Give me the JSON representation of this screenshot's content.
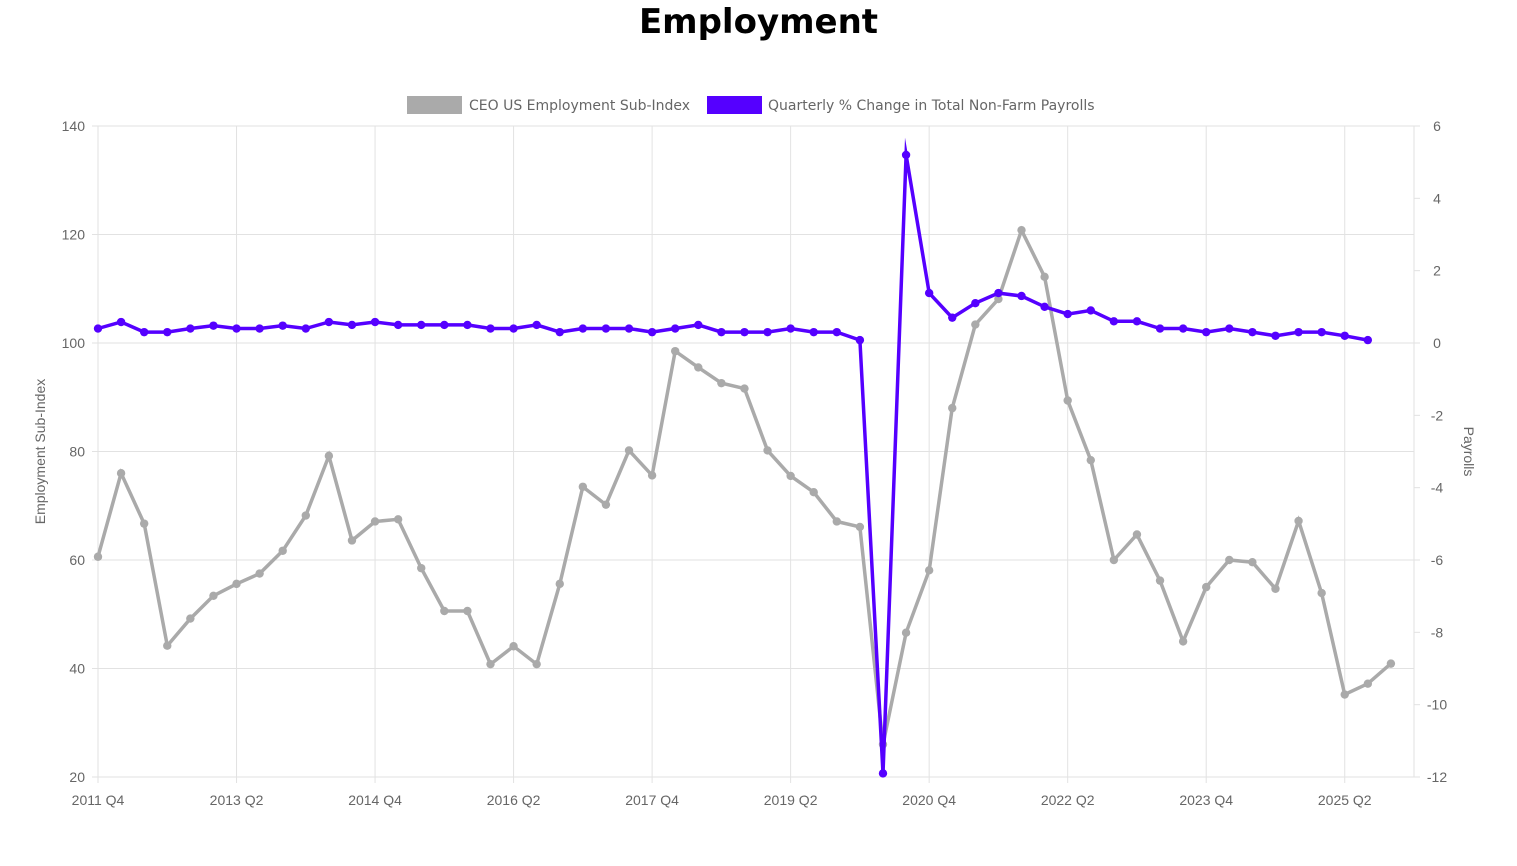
{
  "title": "Employment",
  "chart_data": {
    "type": "line",
    "title": "Employment",
    "categories": [
      "2011 Q4",
      "2012 Q1",
      "2012 Q2",
      "2012 Q3",
      "2012 Q4",
      "2013 Q1",
      "2013 Q2",
      "2013 Q3",
      "2013 Q4",
      "2014 Q1",
      "2014 Q2",
      "2014 Q3",
      "2014 Q4",
      "2015 Q1",
      "2015 Q2",
      "2015 Q3",
      "2015 Q4",
      "2016 Q1",
      "2016 Q2",
      "2016 Q3",
      "2016 Q4",
      "2017 Q1",
      "2017 Q2",
      "2017 Q3",
      "2017 Q4",
      "2018 Q1",
      "2018 Q2",
      "2018 Q3",
      "2018 Q4",
      "2019 Q1",
      "2019 Q2",
      "2019 Q3",
      "2019 Q4",
      "2020 Q1",
      "2020 Q2",
      "2020 Q3",
      "2020 Q4",
      "2021 Q1",
      "2021 Q2",
      "2021 Q3",
      "2021 Q4",
      "2022 Q1",
      "2022 Q2",
      "2022 Q3",
      "2022 Q4",
      "2023 Q1",
      "2023 Q2",
      "2023 Q3",
      "2023 Q4",
      "2024 Q1",
      "2024 Q2",
      "2024 Q3",
      "2024 Q4",
      "2025 Q1",
      "2025 Q2",
      "2025 Q3",
      "2025 Q4"
    ],
    "x_tick_labels": [
      "2011 Q4",
      "2013 Q2",
      "2014 Q4",
      "2016 Q2",
      "2017 Q4",
      "2019 Q2",
      "2020 Q4",
      "2022 Q2",
      "2023 Q4",
      "2025 Q2"
    ],
    "series": [
      {
        "name": "CEO US Employment Sub-Index",
        "axis": "left",
        "color": "#aaaaaa",
        "values": [
          60.6,
          76,
          66.7,
          44.2,
          49.2,
          53.4,
          55.6,
          57.5,
          61.7,
          68.2,
          79.2,
          63.6,
          67.1,
          67.5,
          58.5,
          50.6,
          50.6,
          40.8,
          44.1,
          40.8,
          55.6,
          73.5,
          70.2,
          80.2,
          75.6,
          98.5,
          95.5,
          92.6,
          91.6,
          80.2,
          75.5,
          72.5,
          67.1,
          66.1,
          26,
          46.6,
          58.1,
          88,
          103.4,
          108.1,
          120.8,
          112.2,
          89.4,
          78.4,
          60,
          64.7,
          56.2,
          45,
          55,
          60,
          59.6,
          54.7,
          67.2,
          53.9,
          35.2,
          37.2,
          40.9
        ]
      },
      {
        "name": "Quarterly % Change in Total Non-Farm Payrolls",
        "axis": "right",
        "color": "#5500ff",
        "values": [
          0.4,
          0.58,
          0.3,
          0.3,
          0.4,
          0.48,
          0.4,
          0.4,
          0.48,
          0.4,
          0.58,
          0.5,
          0.58,
          0.5,
          0.5,
          0.5,
          0.5,
          0.4,
          0.4,
          0.5,
          0.3,
          0.4,
          0.4,
          0.4,
          0.3,
          0.4,
          0.5,
          0.3,
          0.3,
          0.3,
          0.4,
          0.3,
          0.3,
          0.08,
          -11.9,
          5.2,
          1.38,
          0.7,
          1.1,
          1.38,
          1.3,
          1.0,
          0.8,
          0.9,
          0.6,
          0.6,
          0.4,
          0.4,
          0.3,
          0.4,
          0.3,
          0.2,
          0.3,
          0.3,
          0.2,
          0.08,
          null
        ]
      }
    ],
    "ylabel": "Employment Sub-Index",
    "ylabel_right": "Payrolls",
    "ylim": [
      20,
      140
    ],
    "yticks": [
      20,
      40,
      60,
      80,
      100,
      120,
      140
    ],
    "ylim_right": [
      -12,
      6
    ],
    "yticks_right": [
      -12,
      -10,
      -8,
      -6,
      -4,
      -2,
      0,
      2,
      4,
      6
    ],
    "grid": true,
    "legend": "top"
  }
}
